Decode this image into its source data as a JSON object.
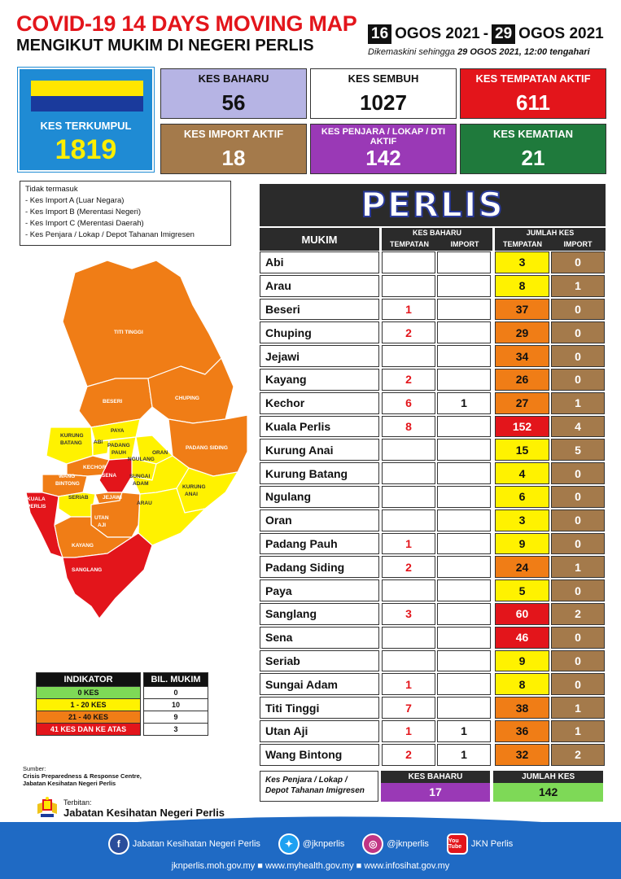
{
  "header": {
    "title": "COVID-19 14 DAYS MOVING MAP",
    "subtitle": "MENGIKUT MUKIM DI NEGERI PERLIS",
    "date_start_day": "16",
    "date_start_rest": "OGOS 2021",
    "date_sep": "-",
    "date_end_day": "29",
    "date_end_rest": "OGOS 2021",
    "updated_prefix": "Dikemaskini sehingga",
    "updated_value": "29 OGOS  2021, 12:00 tengahari"
  },
  "colors": {
    "red": "#e3151b",
    "orange": "#f07d16",
    "yellow": "#fff200",
    "green": "#7ed957",
    "brown": "#a47a4b",
    "purple": "#9a39b6",
    "blue": "#1f8bd4"
  },
  "stats": {
    "terkumpul": {
      "label": "KES TERKUMPUL",
      "value": "1819"
    },
    "baharu": {
      "label": "KES BAHARU",
      "value": "56"
    },
    "sembuh": {
      "label": "KES SEMBUH",
      "value": "1027"
    },
    "tempatan_aktif": {
      "label": "KES TEMPATAN AKTIF",
      "value": "611"
    },
    "import_aktif": {
      "label": "KES IMPORT AKTIF",
      "value": "18"
    },
    "penjara_aktif": {
      "label": "KES PENJARA / LOKAP / DTI AKTIF",
      "value": "142"
    },
    "kematian": {
      "label": "KES KEMATIAN",
      "value": "21"
    }
  },
  "notes": {
    "heading": "Tidak termasuk",
    "items": [
      "- Kes Import A (Luar Negara)",
      "- Kes Import B (Merentasi Negeri)",
      "- Kes Import C (Merentasi Daerah)",
      "- Kes Penjara / Lokap / Depot Tahanan Imigresen"
    ]
  },
  "map_labels": {
    "titi_tinggi": "TITI TINGGI",
    "beseri": "BESERI",
    "chuping": "CHUPING",
    "kurung_batang_1": "KURUNG",
    "kurung_batang_2": "BATANG",
    "abi": "ABI",
    "paya": "PAYA",
    "padang_pauh_1": "PADANG",
    "padang_pauh_2": "PAUH",
    "padang_siding": "PADANG SIDING",
    "oran": "ORAN",
    "ngulang": "NGULANG",
    "kechor": "KECHOR",
    "sena": "SENA",
    "wang_bintong_1": "WANG",
    "wang_bintong_2": "BINTONG",
    "sungai_adam_1": "SUNGAI",
    "sungai_adam_2": "ADAM",
    "kurung_anai_1": "KURUNG",
    "kurung_anai_2": "ANAI",
    "kuala_perlis_1": "KUALA",
    "kuala_perlis_2": "PERLIS",
    "seriab": "SERIAB",
    "jejawi": "JEJAWI",
    "arau": "ARAU",
    "utan_aji_1": "UTAN",
    "utan_aji_2": "AJI",
    "kayang": "KAYANG",
    "sanglang": "SANGLANG"
  },
  "indicator": {
    "header_left": "INDIKATOR",
    "header_right": "BIL. MUKIM",
    "rows": [
      {
        "label": "0 KES",
        "count": "0",
        "color": "#7ed957"
      },
      {
        "label": "1 - 20 KES",
        "count": "10",
        "color": "#fff200"
      },
      {
        "label": "21 - 40 KES",
        "count": "9",
        "color": "#f07d16"
      },
      {
        "label": "41 KES DAN KE ATAS",
        "count": "3",
        "color": "#e3151b"
      }
    ]
  },
  "source": {
    "label": "Sumber:",
    "line1": "Crisis Preparedness & Response Centre,",
    "line2": "Jabatan Kesihatan Negeri Perlis",
    "terbitan_label": "Terbitan:",
    "terbitan_value": "Jabatan Kesihatan Negeri Perlis"
  },
  "table": {
    "banner": "PERLIS",
    "col_mukim": "MUKIM",
    "col_baharu": "KES BAHARU",
    "col_jumlah": "JUMLAH KES",
    "sub_tempatan": "TEMPATAN",
    "sub_import": "IMPORT",
    "rows": [
      {
        "name": "Abi",
        "bt": "",
        "bi": "",
        "jt": "3",
        "ji": "0",
        "level": "yellow"
      },
      {
        "name": "Arau",
        "bt": "",
        "bi": "",
        "jt": "8",
        "ji": "1",
        "level": "yellow"
      },
      {
        "name": "Beseri",
        "bt": "1",
        "bi": "",
        "jt": "37",
        "ji": "0",
        "level": "orange"
      },
      {
        "name": "Chuping",
        "bt": "2",
        "bi": "",
        "jt": "29",
        "ji": "0",
        "level": "orange"
      },
      {
        "name": "Jejawi",
        "bt": "",
        "bi": "",
        "jt": "34",
        "ji": "0",
        "level": "orange"
      },
      {
        "name": "Kayang",
        "bt": "2",
        "bi": "",
        "jt": "26",
        "ji": "0",
        "level": "orange"
      },
      {
        "name": "Kechor",
        "bt": "6",
        "bi": "1",
        "jt": "27",
        "ji": "1",
        "level": "orange"
      },
      {
        "name": "Kuala Perlis",
        "bt": "8",
        "bi": "",
        "jt": "152",
        "ji": "4",
        "level": "red"
      },
      {
        "name": "Kurung Anai",
        "bt": "",
        "bi": "",
        "jt": "15",
        "ji": "5",
        "level": "yellow"
      },
      {
        "name": "Kurung Batang",
        "bt": "",
        "bi": "",
        "jt": "4",
        "ji": "0",
        "level": "yellow"
      },
      {
        "name": "Ngulang",
        "bt": "",
        "bi": "",
        "jt": "6",
        "ji": "0",
        "level": "yellow"
      },
      {
        "name": "Oran",
        "bt": "",
        "bi": "",
        "jt": "3",
        "ji": "0",
        "level": "yellow"
      },
      {
        "name": "Padang Pauh",
        "bt": "1",
        "bi": "",
        "jt": "9",
        "ji": "0",
        "level": "yellow"
      },
      {
        "name": "Padang Siding",
        "bt": "2",
        "bi": "",
        "jt": "24",
        "ji": "1",
        "level": "orange"
      },
      {
        "name": "Paya",
        "bt": "",
        "bi": "",
        "jt": "5",
        "ji": "0",
        "level": "yellow"
      },
      {
        "name": "Sanglang",
        "bt": "3",
        "bi": "",
        "jt": "60",
        "ji": "2",
        "level": "red"
      },
      {
        "name": "Sena",
        "bt": "",
        "bi": "",
        "jt": "46",
        "ji": "0",
        "level": "red"
      },
      {
        "name": "Seriab",
        "bt": "",
        "bi": "",
        "jt": "9",
        "ji": "0",
        "level": "yellow"
      },
      {
        "name": "Sungai Adam",
        "bt": "1",
        "bi": "",
        "jt": "8",
        "ji": "0",
        "level": "yellow"
      },
      {
        "name": "Titi Tinggi",
        "bt": "7",
        "bi": "",
        "jt": "38",
        "ji": "1",
        "level": "orange"
      },
      {
        "name": "Utan Aji",
        "bt": "1",
        "bi": "1",
        "jt": "36",
        "ji": "1",
        "level": "orange"
      },
      {
        "name": "Wang Bintong",
        "bt": "2",
        "bi": "1",
        "jt": "32",
        "ji": "2",
        "level": "orange"
      }
    ]
  },
  "penjara": {
    "label": "Kes Penjara / Lokap / Depot Tahanan Imigresen",
    "baharu_label": "KES BAHARU",
    "baharu_value": "17",
    "jumlah_label": "JUMLAH KES",
    "jumlah_value": "142"
  },
  "footer": {
    "facebook": "Jabatan Kesihatan Negeri Perlis",
    "twitter": "@jknperlis",
    "instagram": "@jknperlis",
    "youtube": "JKN Perlis",
    "youtube_icon_text": "You Tube",
    "urls": "jknperlis.moh.gov.my  ■ www.myhealth.gov.my  ■ www.infosihat.gov.my"
  }
}
